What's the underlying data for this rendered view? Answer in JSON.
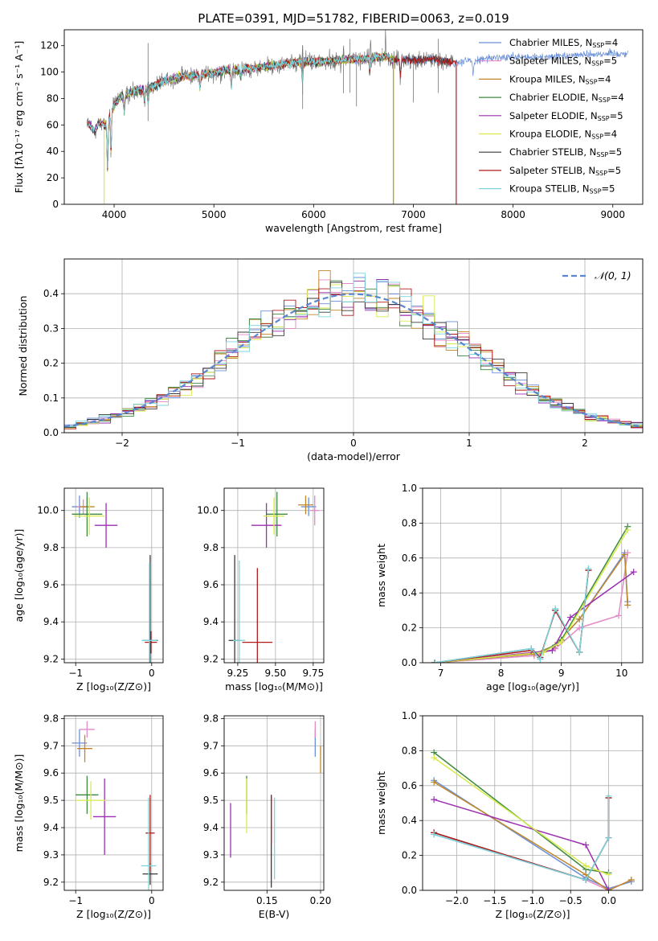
{
  "title": "PLATE=0391, MJD=51782, FIBERID=0063, z=0.019",
  "colors": {
    "Chabrier MILES": "#6b8fd6",
    "Salpeter MILES": "#e38ac8",
    "Kroupa MILES": "#c0872a",
    "Chabrier ELODIE": "#3f8a3f",
    "Salpeter ELODIE": "#9a2fb0",
    "Kroupa ELODIE": "#d8ea4a",
    "Chabrier STELIB": "#3a3a3a",
    "Salpeter STELIB": "#b01c1c",
    "Kroupa STELIB": "#7ad6dc"
  },
  "chart_data": [
    {
      "id": "spectrum",
      "type": "line",
      "title": "PLATE=0391, MJD=51782, FIBERID=0063, z=0.019",
      "xlabel": "wavelength [Angstrom, rest frame]",
      "ylabel": "Flux [fλ10⁻¹⁷ erg cm⁻² s⁻¹ A⁻¹]",
      "xlim": [
        3500,
        9300
      ],
      "ylim": [
        0,
        132
      ],
      "xticks": [
        4000,
        5000,
        6000,
        7000,
        8000,
        9000
      ],
      "yticks": [
        0,
        20,
        40,
        60,
        80,
        100,
        120
      ],
      "legend_position": "top-right",
      "legend": [
        {
          "name": "Chabrier MILES",
          "label": "Chabrier MILES, N",
          "sub": "SSP",
          "n": "=4"
        },
        {
          "name": "Salpeter MILES",
          "label": "Salpeter MILES, N",
          "sub": "SSP",
          "n": "=5"
        },
        {
          "name": "Kroupa MILES",
          "label": "Kroupa MILES, N",
          "sub": "SSP",
          "n": "=4"
        },
        {
          "name": "Chabrier ELODIE",
          "label": "Chabrier ELODIE, N",
          "sub": "SSP",
          "n": "=4"
        },
        {
          "name": "Salpeter ELODIE",
          "label": "Salpeter ELODIE, N",
          "sub": "SSP",
          "n": "=5"
        },
        {
          "name": "Kroupa ELODIE",
          "label": "Kroupa ELODIE, N",
          "sub": "SSP",
          "n": "=4"
        },
        {
          "name": "Chabrier STELIB",
          "label": "Chabrier STELIB, N",
          "sub": "SSP",
          "n": "=5"
        },
        {
          "name": "Salpeter STELIB",
          "label": "Salpeter STELIB, N",
          "sub": "SSP",
          "n": "=5"
        },
        {
          "name": "Kroupa STELIB",
          "label": "Kroupa STELIB, N",
          "sub": "SSP",
          "n": "=5"
        }
      ],
      "continuum": [
        [
          3730,
          62
        ],
        [
          3800,
          55
        ],
        [
          3850,
          62
        ],
        [
          3920,
          60
        ],
        [
          3980,
          72
        ],
        [
          4050,
          80
        ],
        [
          4200,
          86
        ],
        [
          4350,
          88
        ],
        [
          4500,
          93
        ],
        [
          4700,
          97
        ],
        [
          4900,
          98
        ],
        [
          5100,
          101
        ],
        [
          5300,
          102
        ],
        [
          5500,
          104
        ],
        [
          5700,
          106
        ],
        [
          5900,
          108
        ],
        [
          6100,
          108
        ],
        [
          6300,
          109
        ],
        [
          6500,
          110
        ],
        [
          6700,
          112
        ],
        [
          6800,
          109
        ],
        [
          7000,
          109
        ],
        [
          7200,
          110
        ],
        [
          7400,
          107
        ],
        [
          7700,
          110
        ],
        [
          8000,
          111
        ],
        [
          8300,
          111
        ],
        [
          8600,
          113
        ],
        [
          8900,
          114
        ],
        [
          9150,
          114
        ]
      ],
      "series_ranges": [
        {
          "name": "Chabrier MILES",
          "x": [
            3730,
            9150
          ]
        },
        {
          "name": "Salpeter MILES",
          "x": [
            3730,
            6800
          ]
        },
        {
          "name": "Kroupa MILES",
          "x": [
            3730,
            6800
          ]
        },
        {
          "name": "Chabrier ELODIE",
          "x": [
            3730,
            6800
          ]
        },
        {
          "name": "Salpeter ELODIE",
          "x": [
            3730,
            6800
          ]
        },
        {
          "name": "Kroupa ELODIE",
          "x": [
            3900,
            6800
          ]
        },
        {
          "name": "Chabrier STELIB",
          "x": [
            3730,
            7400
          ]
        },
        {
          "name": "Salpeter STELIB",
          "x": [
            3730,
            7430
          ]
        },
        {
          "name": "Kroupa STELIB",
          "x": [
            3730,
            6800
          ]
        }
      ],
      "data_series": {
        "name": "data",
        "x": [
          3730,
          7400
        ],
        "color": "#777777"
      }
    },
    {
      "id": "residuals",
      "type": "line",
      "xlabel": "(data-model)/error",
      "ylabel": "Normed distribution",
      "xlim": [
        -2.5,
        2.5
      ],
      "ylim": [
        0,
        0.5
      ],
      "xticks": [
        -2,
        -1,
        0,
        1,
        2
      ],
      "yticks": [
        0.0,
        0.1,
        0.2,
        0.3,
        0.4
      ],
      "grid": true,
      "legend_position": "top-right",
      "legend": [
        {
          "name": "N(0,1)",
          "label": "𝒩(0, 1)",
          "style": "dashed",
          "color": "#5b86d0"
        }
      ],
      "bin_width": 0.1
    },
    {
      "id": "age-vs-z",
      "type": "scatter",
      "xlabel": "Z [log₁₀(Z/Z⊙)]",
      "ylabel": "age  [log₁₀(age/yr)]",
      "xlim": [
        -1.15,
        0.15
      ],
      "ylim": [
        9.18,
        10.12
      ],
      "xticks": [
        -1,
        0
      ],
      "yticks": [
        9.2,
        9.4,
        9.6,
        9.8,
        10.0
      ],
      "grid": true,
      "points": [
        {
          "name": "Chabrier MILES",
          "x": -0.95,
          "y": 10.02,
          "xerr": 0.1,
          "yerr": 0.06
        },
        {
          "name": "Salpeter MILES",
          "x": -0.9,
          "y": 10.02,
          "xerr": 0.08,
          "yerr": 0.04
        },
        {
          "name": "Kroupa MILES",
          "x": -0.85,
          "y": 10.02,
          "xerr": 0.1,
          "yerr": 0.05
        },
        {
          "name": "Chabrier ELODIE",
          "x": -0.85,
          "y": 9.98,
          "xerr": 0.2,
          "yerr": 0.12
        },
        {
          "name": "Salpeter ELODIE",
          "x": -0.6,
          "y": 9.92,
          "xerr": 0.15,
          "yerr": 0.12
        },
        {
          "name": "Kroupa ELODIE",
          "x": -0.82,
          "y": 9.97,
          "xerr": 0.2,
          "yerr": 0.1
        },
        {
          "name": "Chabrier STELIB",
          "x": -0.02,
          "y": 9.3,
          "xerr": 0.1,
          "yerr": 0.46
        },
        {
          "name": "Salpeter STELIB",
          "x": -0.01,
          "y": 9.29,
          "xerr": 0.08,
          "yerr": 0.06
        },
        {
          "name": "Kroupa STELIB",
          "x": -0.03,
          "y": 9.3,
          "xerr": 0.1,
          "yerr": 0.42
        }
      ]
    },
    {
      "id": "age-vs-mass",
      "type": "scatter",
      "xlabel": "mass [log₁₀(M/M⊙)]",
      "ylabel": "",
      "xlim": [
        9.16,
        9.82
      ],
      "ylim": [
        9.18,
        10.12
      ],
      "xticks": [
        9.25,
        9.5,
        9.75
      ],
      "yticks": [
        9.2,
        9.4,
        9.6,
        9.8,
        10.0
      ],
      "grid": true,
      "points": [
        {
          "name": "Chabrier MILES",
          "x": 9.72,
          "y": 10.02,
          "xerr": 0.05,
          "yerr": 0.05
        },
        {
          "name": "Salpeter MILES",
          "x": 9.76,
          "y": 10.0,
          "xerr": 0.03,
          "yerr": 0.08
        },
        {
          "name": "Kroupa MILES",
          "x": 9.7,
          "y": 10.03,
          "xerr": 0.05,
          "yerr": 0.05
        },
        {
          "name": "Chabrier ELODIE",
          "x": 9.51,
          "y": 9.98,
          "xerr": 0.07,
          "yerr": 0.12
        },
        {
          "name": "Salpeter ELODIE",
          "x": 9.44,
          "y": 9.92,
          "xerr": 0.1,
          "yerr": 0.12
        },
        {
          "name": "Kroupa ELODIE",
          "x": 9.49,
          "y": 9.97,
          "xerr": 0.07,
          "yerr": 0.1
        },
        {
          "name": "Chabrier STELIB",
          "x": 9.23,
          "y": 9.3,
          "xerr": 0.04,
          "yerr": 0.46
        },
        {
          "name": "Salpeter STELIB",
          "x": 9.38,
          "y": 9.29,
          "xerr": 0.1,
          "yerr": 0.4
        },
        {
          "name": "Kroupa STELIB",
          "x": 9.26,
          "y": 9.3,
          "xerr": 0.04,
          "yerr": 0.43
        }
      ]
    },
    {
      "id": "weight-vs-age",
      "type": "line",
      "xlabel": "age  [log₁₀(age/yr)]",
      "ylabel": "mass weight",
      "xlim": [
        6.7,
        10.35
      ],
      "ylim": [
        0,
        1.0
      ],
      "xticks": [
        7,
        8,
        9,
        10
      ],
      "yticks": [
        0.0,
        0.2,
        0.4,
        0.6,
        0.8,
        1.0
      ],
      "grid": true,
      "series": [
        {
          "name": "Chabrier MILES",
          "x": [
            6.9,
            8.55,
            8.9,
            9.3,
            10.05,
            10.1
          ],
          "y": [
            0.0,
            0.05,
            0.1,
            0.25,
            0.63,
            0.35
          ]
        },
        {
          "name": "Salpeter MILES",
          "x": [
            6.9,
            8.55,
            8.9,
            9.3,
            9.95,
            10.1
          ],
          "y": [
            0.0,
            0.04,
            0.08,
            0.2,
            0.27,
            0.63
          ]
        },
        {
          "name": "Kroupa MILES",
          "x": [
            6.9,
            8.55,
            8.9,
            9.3,
            10.05,
            10.1
          ],
          "y": [
            0.0,
            0.05,
            0.1,
            0.25,
            0.62,
            0.33
          ]
        },
        {
          "name": "Chabrier ELODIE",
          "x": [
            6.9,
            8.7,
            9.0,
            10.1
          ],
          "y": [
            0.0,
            0.06,
            0.13,
            0.78
          ]
        },
        {
          "name": "Salpeter ELODIE",
          "x": [
            6.9,
            8.85,
            9.15,
            10.2
          ],
          "y": [
            0.0,
            0.07,
            0.26,
            0.52
          ]
        },
        {
          "name": "Kroupa ELODIE",
          "x": [
            6.9,
            8.7,
            9.0,
            10.1
          ],
          "y": [
            0.0,
            0.06,
            0.12,
            0.76
          ]
        },
        {
          "name": "Chabrier STELIB",
          "x": [
            6.9,
            8.5,
            8.65,
            8.9,
            9.3,
            9.45
          ],
          "y": [
            0.0,
            0.08,
            0.03,
            0.3,
            0.06,
            0.53
          ]
        },
        {
          "name": "Salpeter STELIB",
          "x": [
            6.9,
            8.5,
            8.65,
            8.9,
            9.3,
            9.45
          ],
          "y": [
            0.0,
            0.07,
            0.03,
            0.3,
            0.06,
            0.53
          ]
        },
        {
          "name": "Kroupa STELIB",
          "x": [
            6.9,
            8.5,
            8.65,
            8.9,
            9.3,
            9.45
          ],
          "y": [
            0.0,
            0.08,
            0.02,
            0.31,
            0.06,
            0.54
          ]
        }
      ]
    },
    {
      "id": "mass-vs-z",
      "type": "scatter",
      "xlabel": "Z [log₁₀(Z/Z⊙)]",
      "ylabel": "mass [log₁₀(M/M⊙)]",
      "xlim": [
        -1.15,
        0.15
      ],
      "ylim": [
        9.17,
        9.81
      ],
      "xticks": [
        -1,
        0
      ],
      "yticks": [
        9.2,
        9.3,
        9.4,
        9.5,
        9.6,
        9.7,
        9.8
      ],
      "grid": true,
      "points": [
        {
          "name": "Chabrier MILES",
          "x": -0.95,
          "y": 9.71,
          "xerr": 0.1,
          "yerr": 0.05
        },
        {
          "name": "Salpeter MILES",
          "x": -0.85,
          "y": 9.76,
          "xerr": 0.1,
          "yerr": 0.03
        },
        {
          "name": "Kroupa MILES",
          "x": -0.88,
          "y": 9.69,
          "xerr": 0.1,
          "yerr": 0.05
        },
        {
          "name": "Chabrier ELODIE",
          "x": -0.85,
          "y": 9.52,
          "xerr": 0.15,
          "yerr": 0.07
        },
        {
          "name": "Salpeter ELODIE",
          "x": -0.62,
          "y": 9.44,
          "xerr": 0.15,
          "yerr": 0.14
        },
        {
          "name": "Kroupa ELODIE",
          "x": -0.8,
          "y": 9.5,
          "xerr": 0.2,
          "yerr": 0.07
        },
        {
          "name": "Chabrier STELIB",
          "x": -0.02,
          "y": 9.23,
          "xerr": 0.1,
          "yerr": 0.04
        },
        {
          "name": "Salpeter STELIB",
          "x": -0.02,
          "y": 9.38,
          "xerr": 0.06,
          "yerr": 0.14
        },
        {
          "name": "Kroupa STELIB",
          "x": -0.04,
          "y": 9.26,
          "xerr": 0.1,
          "yerr": 0.25
        }
      ]
    },
    {
      "id": "mass-vs-ebv",
      "type": "scatter",
      "xlabel": "E(B-V)",
      "ylabel": "",
      "xlim": [
        0.11,
        0.203
      ],
      "ylim": [
        9.17,
        9.81
      ],
      "xticks": [
        0.15,
        0.2
      ],
      "yticks": [
        9.2,
        9.3,
        9.4,
        9.5,
        9.6,
        9.7,
        9.8
      ],
      "grid": true,
      "points": [
        {
          "name": "Chabrier MILES",
          "x": 0.195,
          "y": 9.71,
          "xerr": 0.0,
          "yerr": 0.05
        },
        {
          "name": "Salpeter MILES",
          "x": 0.195,
          "y": 9.76,
          "xerr": 0.0,
          "yerr": 0.03
        },
        {
          "name": "Kroupa MILES",
          "x": 0.2,
          "y": 9.65,
          "xerr": 0.0,
          "yerr": 0.05
        },
        {
          "name": "Chabrier ELODIE",
          "x": 0.131,
          "y": 9.52,
          "xerr": 0.0,
          "yerr": 0.07
        },
        {
          "name": "Salpeter ELODIE",
          "x": 0.116,
          "y": 9.39,
          "xerr": 0.0,
          "yerr": 0.1
        },
        {
          "name": "Kroupa ELODIE",
          "x": 0.131,
          "y": 9.48,
          "xerr": 0.0,
          "yerr": 0.1
        },
        {
          "name": "Chabrier STELIB",
          "x": 0.154,
          "y": 9.35,
          "xerr": 0.0,
          "yerr": 0.17
        },
        {
          "name": "Salpeter STELIB",
          "x": 0.154,
          "y": 9.43,
          "xerr": 0.0,
          "yerr": 0.09
        },
        {
          "name": "Kroupa STELIB",
          "x": 0.157,
          "y": 9.36,
          "xerr": 0.0,
          "yerr": 0.15
        }
      ]
    },
    {
      "id": "weight-vs-z",
      "type": "line",
      "xlabel": "Z [log₁₀(Z/Z⊙)]",
      "ylabel": "mass weight",
      "xlim": [
        -2.45,
        0.45
      ],
      "ylim": [
        0,
        1.0
      ],
      "xticks": [
        -2.0,
        -1.5,
        -1.0,
        -0.5,
        0.0
      ],
      "yticks": [
        0.0,
        0.2,
        0.4,
        0.6,
        0.8,
        1.0
      ],
      "grid": true,
      "series": [
        {
          "name": "Chabrier MILES",
          "x": [
            -2.3,
            -0.3,
            0.0,
            0.3
          ],
          "y": [
            0.63,
            0.07,
            0.01,
            0.05
          ]
        },
        {
          "name": "Salpeter MILES",
          "x": [
            -2.3,
            -0.3,
            0.0,
            0.3
          ],
          "y": [
            0.32,
            0.06,
            0.0,
            0.06
          ]
        },
        {
          "name": "Kroupa MILES",
          "x": [
            -2.3,
            -0.3,
            0.0,
            0.3
          ],
          "y": [
            0.62,
            0.09,
            0.0,
            0.06
          ]
        },
        {
          "name": "Chabrier ELODIE",
          "x": [
            -2.3,
            -0.3,
            0.0
          ],
          "y": [
            0.79,
            0.12,
            0.1
          ]
        },
        {
          "name": "Salpeter ELODIE",
          "x": [
            -2.3,
            -0.3,
            0.0
          ],
          "y": [
            0.52,
            0.26,
            0.0
          ]
        },
        {
          "name": "Kroupa ELODIE",
          "x": [
            -2.3,
            -0.3,
            0.0
          ],
          "y": [
            0.76,
            0.14,
            0.09
          ]
        },
        {
          "name": "Chabrier STELIB",
          "x": [
            -2.3,
            -0.3,
            0.0,
            0.0
          ],
          "y": [
            0.33,
            0.06,
            0.3,
            0.53
          ]
        },
        {
          "name": "Salpeter STELIB",
          "x": [
            -2.3,
            -0.3,
            0.0,
            0.0
          ],
          "y": [
            0.33,
            0.06,
            0.3,
            0.53
          ]
        },
        {
          "name": "Kroupa STELIB",
          "x": [
            -2.3,
            -0.3,
            0.0,
            0.0
          ],
          "y": [
            0.32,
            0.06,
            0.3,
            0.54
          ]
        }
      ]
    }
  ]
}
